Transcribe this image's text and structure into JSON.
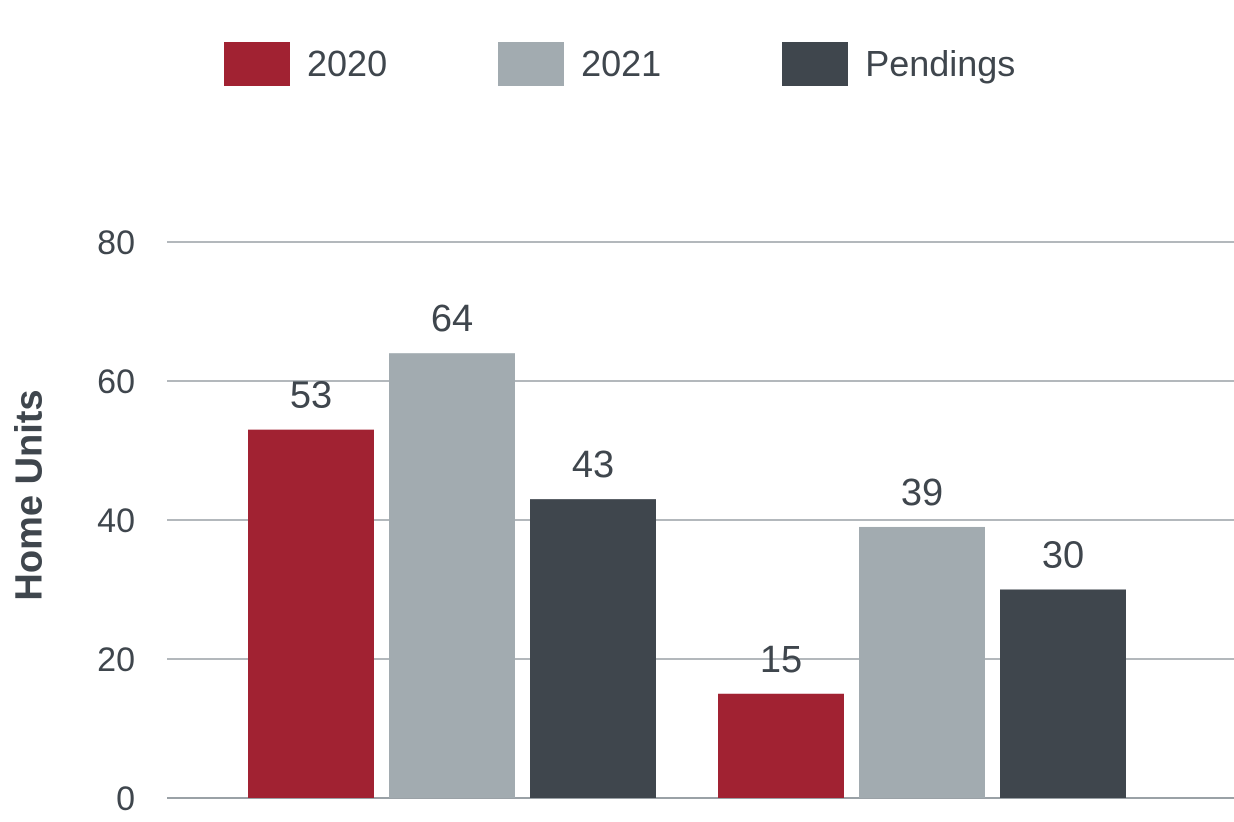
{
  "chart_data": {
    "type": "bar",
    "categories": [
      "",
      ""
    ],
    "series": [
      {
        "name": "2020",
        "values": [
          53,
          15
        ],
        "color": "#a12232"
      },
      {
        "name": "2021",
        "values": [
          64,
          39
        ],
        "color": "#a2abb0"
      },
      {
        "name": "Pendings",
        "values": [
          43,
          30
        ],
        "color": "#3f464d"
      }
    ],
    "ylabel": "Home Units",
    "ylim": [
      0,
      80
    ],
    "yticks": [
      0,
      20,
      40,
      60,
      80
    ],
    "grid": true,
    "legend_position": "top"
  }
}
